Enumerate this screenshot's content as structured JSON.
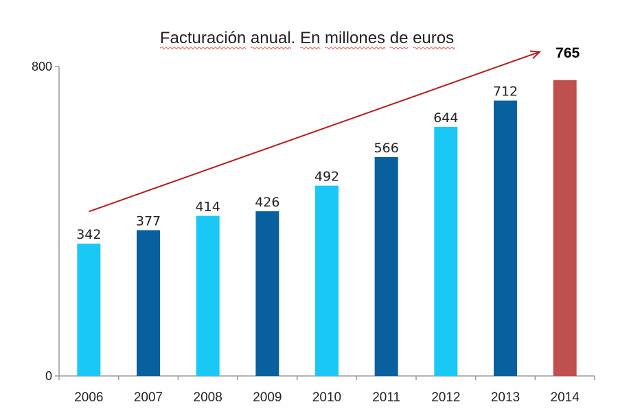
{
  "chart_data": {
    "type": "bar",
    "title": "Facturación anual. En millones de euros",
    "categories": [
      "2006",
      "2007",
      "2008",
      "2009",
      "2010",
      "2011",
      "2012",
      "2013",
      "2014"
    ],
    "values": [
      342,
      377,
      414,
      426,
      492,
      566,
      644,
      712,
      765
    ],
    "data_labels": [
      "342",
      "377",
      "414",
      "426",
      "492",
      "566",
      "644",
      "712",
      "765"
    ],
    "ylim": [
      0,
      800
    ],
    "yticks": [
      "0",
      "800"
    ],
    "grid": false,
    "colors": {
      "light": "#1ac8f6",
      "dark": "#08609e",
      "highlight": "#c0504d",
      "trend_arrow": "#b71c1c",
      "axis": "#9a9a9a",
      "title_underline": "#e06666"
    },
    "bar_color_keys": [
      "light",
      "dark",
      "light",
      "dark",
      "light",
      "dark",
      "light",
      "dark",
      "highlight"
    ],
    "highlight_index": 8,
    "trend_arrow": {
      "from_value": 425,
      "to_value": 838
    }
  }
}
